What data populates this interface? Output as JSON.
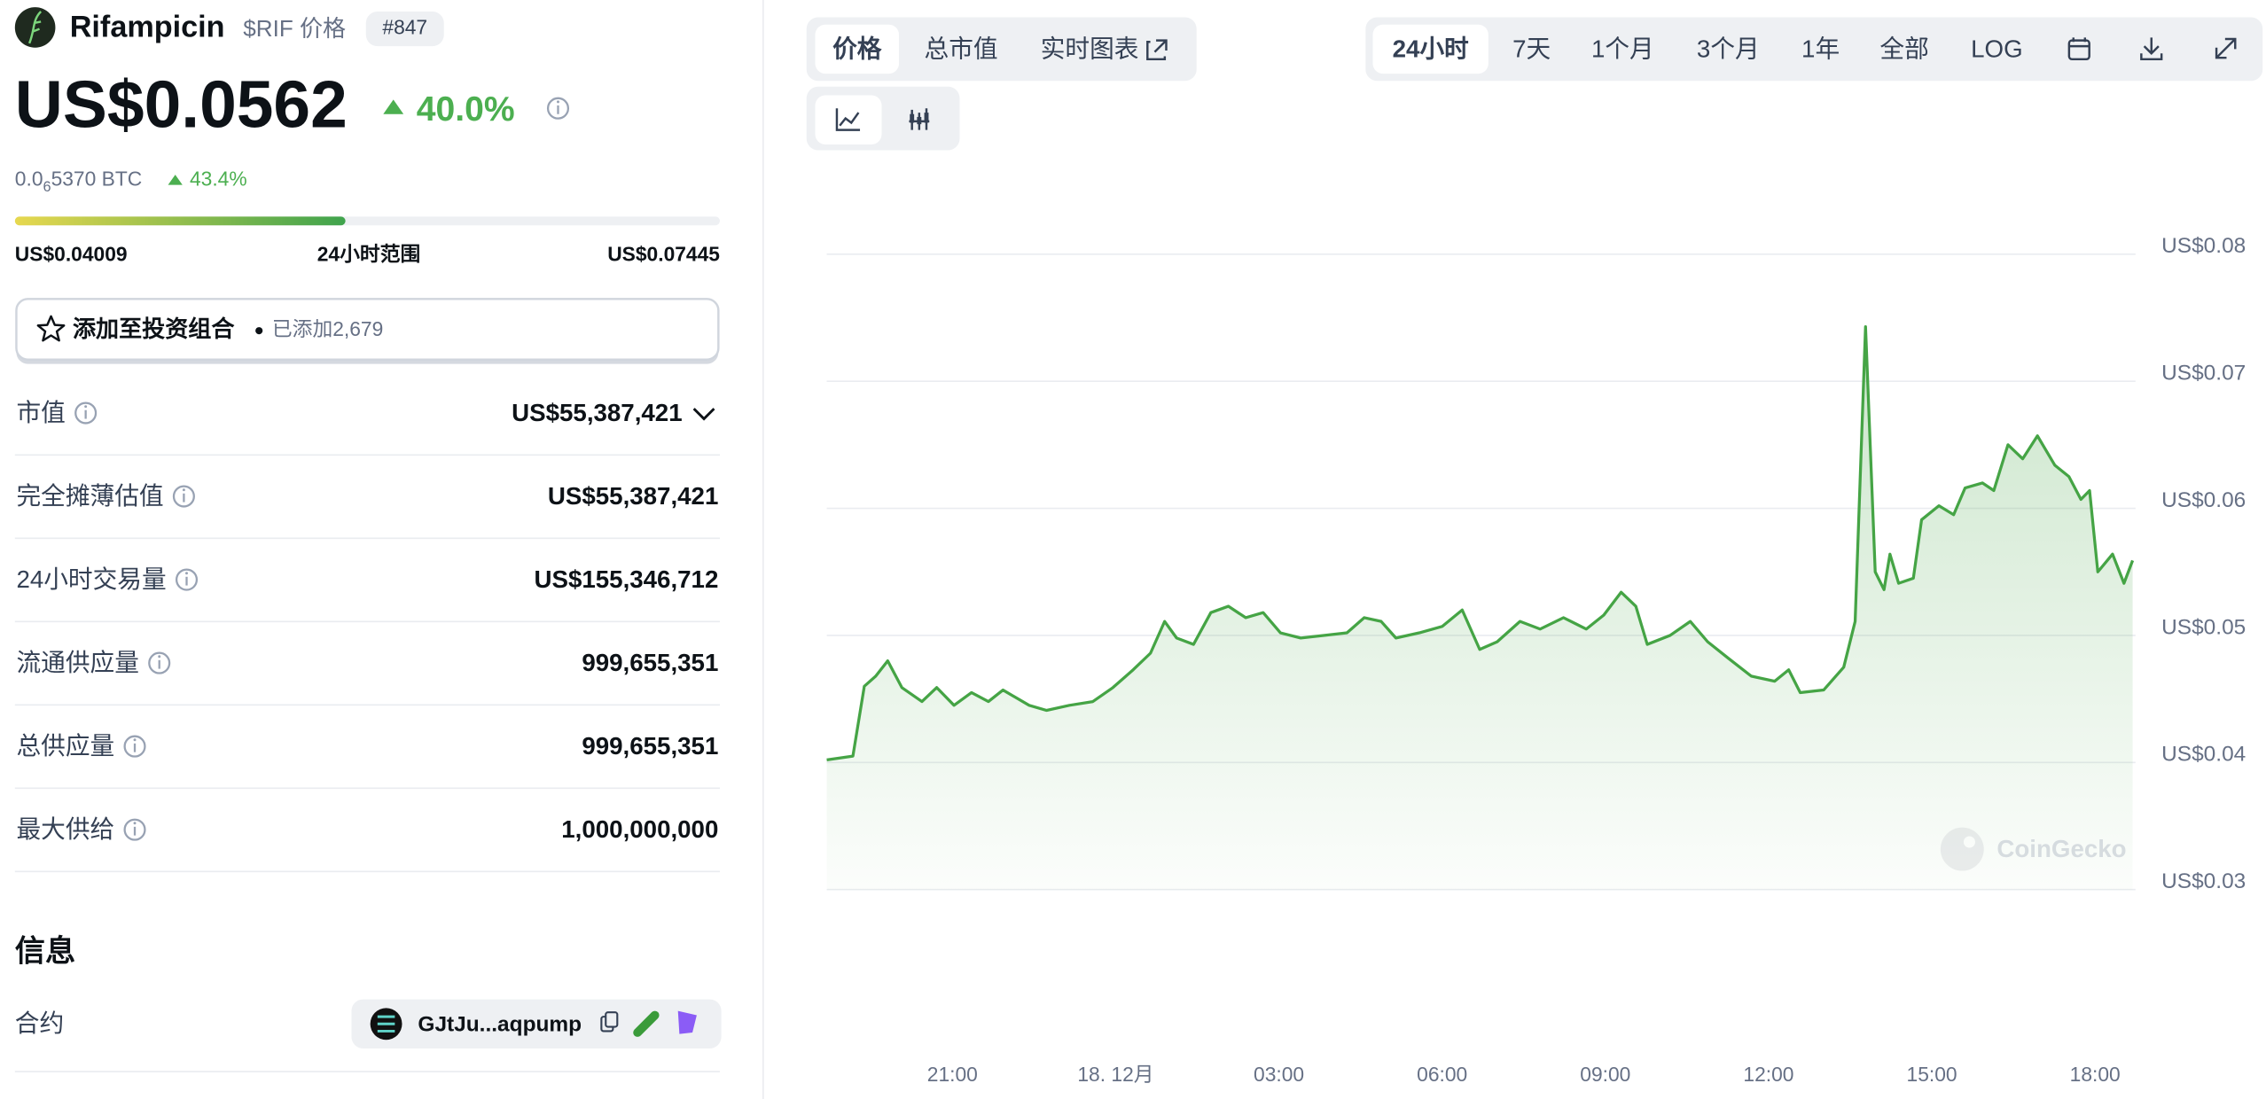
{
  "header": {
    "name": "Rifampicin",
    "symbol": "$RIF 价格",
    "rank": "#847",
    "price": "US$0.0562",
    "change": "40.0%",
    "btc_price_lead": "0.0",
    "btc_price_zeros": "6",
    "btc_price_rest": "5370 BTC",
    "btc_change": "43.4%"
  },
  "range": {
    "low": "US$0.04009",
    "label": "24小时范围",
    "high": "US$0.07445"
  },
  "portfolio": {
    "button": "添加至投资组合",
    "added": "已添加2,679"
  },
  "stats": [
    {
      "label": "市值",
      "value": "US$55,387,421",
      "dropdown": true
    },
    {
      "label": "完全摊薄估值",
      "value": "US$55,387,421"
    },
    {
      "label": "24小时交易量",
      "value": "US$155,346,712"
    },
    {
      "label": "流通供应量",
      "value": "999,655,351"
    },
    {
      "label": "总供应量",
      "value": "999,655,351"
    },
    {
      "label": "最大供给",
      "value": "1,000,000,000"
    }
  ],
  "info": {
    "title": "信息",
    "contract_label": "合约",
    "contract": "GJtJu...aqpump"
  },
  "tabs": {
    "chart_tabs": [
      "价格",
      "总市值",
      "实时图表"
    ],
    "range_tabs": [
      "24小时",
      "7天",
      "1个月",
      "3个月",
      "1年",
      "全部",
      "LOG"
    ]
  },
  "watermark": "CoinGecko",
  "chart_data": {
    "type": "area",
    "color": "#45a445",
    "grid": true,
    "xlim": [
      -5.31,
      18.69
    ],
    "ylim": [
      0.03,
      0.08
    ],
    "xticks": [
      {
        "value": -3,
        "label": "21:00"
      },
      {
        "value": 0,
        "label": "18. 12月"
      },
      {
        "value": 3,
        "label": "03:00"
      },
      {
        "value": 6,
        "label": "06:00"
      },
      {
        "value": 9,
        "label": "09:00"
      },
      {
        "value": 12,
        "label": "12:00"
      },
      {
        "value": 15,
        "label": "15:00"
      },
      {
        "value": 18,
        "label": "18:00"
      }
    ],
    "yticks": [
      {
        "value": 0.08,
        "label": "US$0.08"
      },
      {
        "value": 0.07,
        "label": "US$0.07"
      },
      {
        "value": 0.06,
        "label": "US$0.06"
      },
      {
        "value": 0.05,
        "label": "US$0.05"
      },
      {
        "value": 0.04,
        "label": "US$0.04"
      },
      {
        "value": 0.03,
        "label": "US$0.03"
      }
    ],
    "x": [
      -5.31,
      -4.83,
      -4.62,
      -4.41,
      -4.19,
      -3.93,
      -3.56,
      -3.29,
      -2.97,
      -2.65,
      -2.34,
      -2.07,
      -1.59,
      -1.27,
      -0.85,
      -0.42,
      -0.05,
      0.32,
      0.64,
      0.9,
      1.12,
      1.43,
      1.75,
      2.07,
      2.39,
      2.71,
      3.03,
      3.4,
      3.82,
      4.25,
      4.57,
      4.88,
      5.15,
      5.58,
      6.0,
      6.37,
      6.69,
      7.01,
      7.43,
      7.8,
      8.23,
      8.65,
      8.97,
      9.29,
      9.56,
      9.77,
      10.19,
      10.56,
      10.88,
      11.26,
      11.68,
      12.11,
      12.37,
      12.58,
      13.01,
      13.38,
      13.59,
      13.78,
      13.96,
      14.12,
      14.23,
      14.39,
      14.66,
      14.81,
      15.13,
      15.4,
      15.61,
      15.93,
      16.14,
      16.4,
      16.67,
      16.94,
      17.26,
      17.52,
      17.74,
      17.9,
      18.05,
      18.32,
      18.53,
      18.69
    ],
    "values": [
      0.0402,
      0.0405,
      0.046,
      0.0468,
      0.048,
      0.0459,
      0.0448,
      0.0459,
      0.0445,
      0.0455,
      0.0448,
      0.0457,
      0.0445,
      0.0441,
      0.0445,
      0.0448,
      0.0459,
      0.0473,
      0.0486,
      0.0511,
      0.0498,
      0.0493,
      0.0518,
      0.0523,
      0.0514,
      0.0518,
      0.0502,
      0.0498,
      0.05,
      0.0502,
      0.0514,
      0.0511,
      0.0498,
      0.0502,
      0.0507,
      0.052,
      0.0489,
      0.0495,
      0.0511,
      0.0505,
      0.0514,
      0.0505,
      0.0516,
      0.0534,
      0.0523,
      0.0493,
      0.05,
      0.0511,
      0.0495,
      0.0482,
      0.0468,
      0.0464,
      0.0473,
      0.0455,
      0.0457,
      0.0475,
      0.0511,
      0.0743,
      0.055,
      0.0536,
      0.0564,
      0.0541,
      0.0545,
      0.0591,
      0.0602,
      0.0595,
      0.0616,
      0.062,
      0.0614,
      0.065,
      0.0639,
      0.0657,
      0.0634,
      0.0625,
      0.0607,
      0.0614,
      0.055,
      0.0564,
      0.0541,
      0.0559
    ]
  }
}
